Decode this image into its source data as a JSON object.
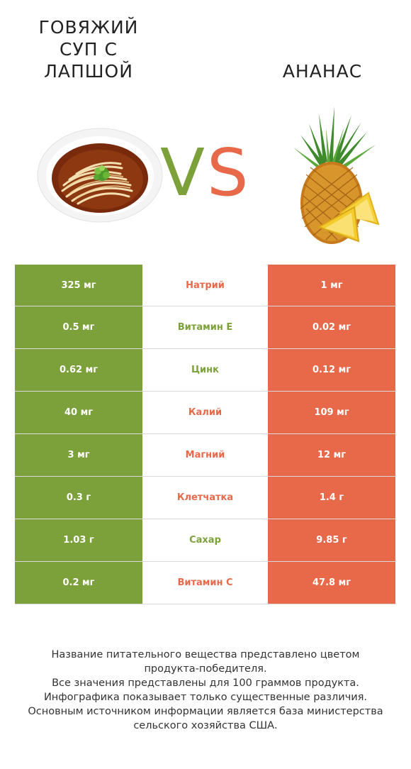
{
  "left_product": {
    "title": "ГОВЯЖИЙ СУП С ЛАПШОЙ",
    "color": "#7da13a"
  },
  "right_product": {
    "title": "АНАНАС",
    "color": "#e8694a"
  },
  "vs": {
    "v": "V",
    "s": "S"
  },
  "rows": [
    {
      "left": "325 мг",
      "label": "Натрий",
      "right": "1 мг",
      "winner": "right"
    },
    {
      "left": "0.5 мг",
      "label": "Витамин E",
      "right": "0.02 мг",
      "winner": "left"
    },
    {
      "left": "0.62 мг",
      "label": "Цинк",
      "right": "0.12 мг",
      "winner": "left"
    },
    {
      "left": "40 мг",
      "label": "Калий",
      "right": "109 мг",
      "winner": "right"
    },
    {
      "left": "3 мг",
      "label": "Магний",
      "right": "12 мг",
      "winner": "right"
    },
    {
      "left": "0.3 г",
      "label": "Клетчатка",
      "right": "1.4 г",
      "winner": "right"
    },
    {
      "left": "1.03 г",
      "label": "Сахар",
      "right": "9.85 г",
      "winner": "left"
    },
    {
      "left": "0.2 мг",
      "label": "Витамин C",
      "right": "47.8 мг",
      "winner": "right"
    }
  ],
  "footnote": [
    "Название питательного вещества представлено цветом",
    "продукта-победителя.",
    "Все значения представлены для 100 граммов продукта.",
    "Инфографика показывает только существенные различия.",
    "Основным источником информации является база министерства",
    "сельского хозяйства США."
  ]
}
